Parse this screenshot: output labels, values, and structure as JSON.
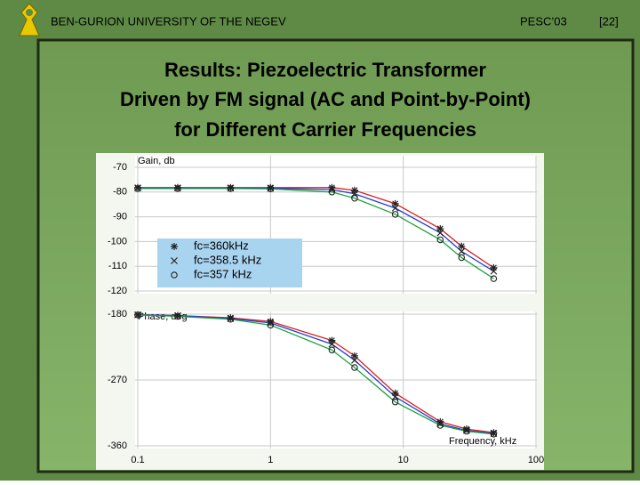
{
  "header": {
    "university": "BEN-GURION UNIVERSITY OF THE NEGEV",
    "conference": "PESC’03",
    "slide_number": "[22]"
  },
  "title_lines": [
    "Results: Piezoelectric Transformer",
    "Driven by FM signal (AC and Point-by-Point)",
    "for Different Carrier Frequencies"
  ],
  "chart_data": [
    {
      "type": "line",
      "y_label": "Gain, db",
      "log_x": true,
      "xlim": [
        0.1,
        100
      ],
      "ylim": [
        -120,
        -70
      ],
      "yticks": [
        -70,
        -80,
        -90,
        -100,
        -110,
        -120
      ],
      "x": [
        0.1,
        0.2,
        0.5,
        1,
        2.9,
        4.3,
        8.7,
        19,
        27.5,
        48
      ],
      "series": [
        {
          "name": "fc=360kHz",
          "color": "#d62020",
          "values": [
            -78.2,
            -78.2,
            -78.2,
            -78.2,
            -78.2,
            -79.3,
            -84.7,
            -94.8,
            -101.9,
            -110.6
          ]
        },
        {
          "name": "fc=358.5 kHz",
          "color": "#2040d0",
          "values": [
            -78.4,
            -78.4,
            -78.4,
            -78.5,
            -79,
            -80.7,
            -86.5,
            -96.5,
            -104,
            -112
          ]
        },
        {
          "name": "fc=357 kHz",
          "color": "#20a040",
          "values": [
            -78.6,
            -78.6,
            -78.6,
            -78.7,
            -80,
            -82.5,
            -89,
            -99.3,
            -106.5,
            -115
          ]
        }
      ]
    },
    {
      "type": "line",
      "y_label": "Phase, deg",
      "x_label": "Frequency, kHz",
      "log_x": true,
      "xlim": [
        0.1,
        100
      ],
      "xticks": [
        0.1,
        1,
        10,
        100
      ],
      "ylim": [
        -360,
        -180
      ],
      "yticks": [
        -180,
        -270,
        -360
      ],
      "x": [
        0.1,
        0.2,
        0.5,
        1,
        2.9,
        4.3,
        8.7,
        19,
        30,
        48
      ],
      "series": [
        {
          "name": "fc=360kHz",
          "color": "#d62020",
          "values": [
            -181,
            -182,
            -185,
            -190,
            -216,
            -237,
            -288,
            -327,
            -337,
            -342
          ]
        },
        {
          "name": "fc=358.5 kHz",
          "color": "#2040d0",
          "values": [
            -181,
            -182,
            -186,
            -192,
            -221,
            -243,
            -293,
            -330,
            -339,
            -343
          ]
        },
        {
          "name": "fc=357 kHz",
          "color": "#20a040",
          "values": [
            -181,
            -183,
            -187,
            -195,
            -229,
            -253,
            -300,
            -332,
            -340,
            -344
          ]
        }
      ]
    }
  ]
}
